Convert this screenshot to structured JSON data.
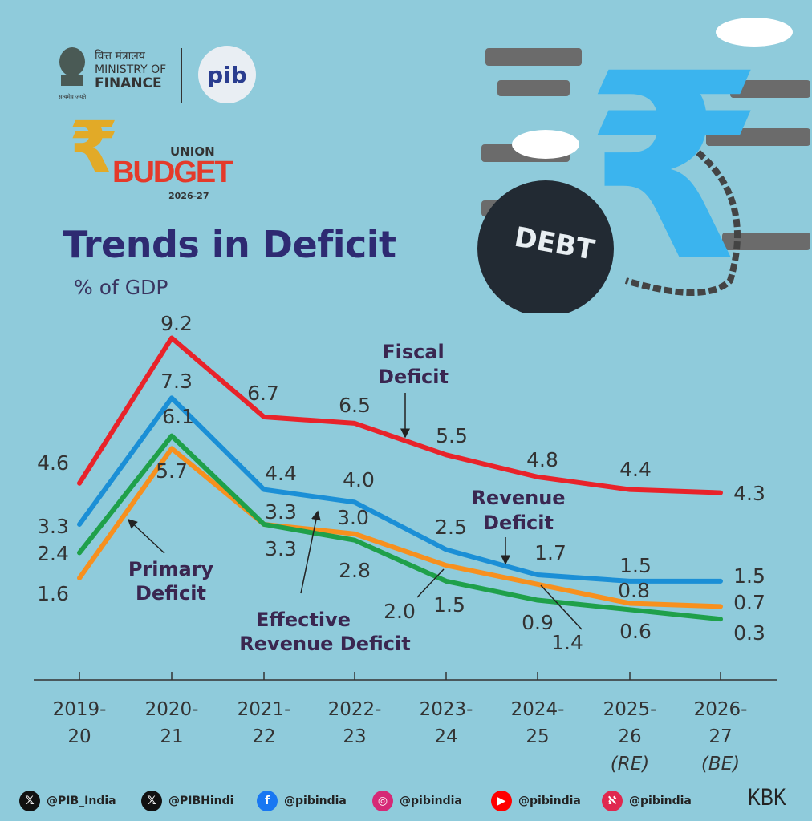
{
  "header": {
    "ministry_hindi": "वित्त मंत्रालय",
    "ministry_line1": "MINISTRY OF",
    "ministry_line2": "FINANCE",
    "emblem_motto": "सत्यमेव जयते",
    "pib_logo": "pib",
    "budget_union": "UNION",
    "budget_word": "BUDGET",
    "budget_year": "2026-27"
  },
  "illustration": {
    "ball_text": "DEBT",
    "rupee_color": "#3bb4ee"
  },
  "chart_data": {
    "type": "line",
    "title": "Trends in Deficit",
    "ylabel": "% of GDP",
    "xlabel": "",
    "categories": [
      [
        "2019-",
        "20",
        ""
      ],
      [
        "2020-",
        "21",
        ""
      ],
      [
        "2021-",
        "22",
        ""
      ],
      [
        "2022-",
        "23",
        ""
      ],
      [
        "2023-",
        "24",
        ""
      ],
      [
        "2024-",
        "25",
        ""
      ],
      [
        "2025-",
        "26",
        "(RE)"
      ],
      [
        "2026-",
        "27",
        "(BE)"
      ]
    ],
    "ylim": [
      0,
      10
    ],
    "grid": false,
    "legend": "inline annotations",
    "series": [
      {
        "name": "Fiscal Deficit",
        "name_lines": [
          "Fiscal",
          "Deficit"
        ],
        "color": "#e8232a",
        "values": [
          4.6,
          9.2,
          6.7,
          6.5,
          5.5,
          4.8,
          4.4,
          4.3
        ]
      },
      {
        "name": "Revenue Deficit",
        "name_lines": [
          "Revenue",
          "Deficit"
        ],
        "color": "#1b8fd6",
        "values": [
          3.3,
          7.3,
          4.4,
          4.0,
          2.5,
          1.7,
          1.5,
          1.5
        ]
      },
      {
        "name": "Primary Deficit",
        "name_lines": [
          "Primary",
          "Deficit"
        ],
        "color": "#f7901e",
        "values": [
          1.6,
          5.7,
          3.3,
          3.0,
          2.0,
          1.4,
          0.8,
          0.7
        ]
      },
      {
        "name": "Effective Revenue Deficit",
        "name_lines": [
          "Effective",
          "Revenue Deficit"
        ],
        "color": "#1fa04a",
        "values": [
          2.4,
          6.1,
          3.3,
          2.8,
          1.5,
          0.9,
          0.6,
          0.3
        ]
      }
    ]
  },
  "footer": {
    "handles": [
      {
        "icon": "x-icon",
        "text": "@PIB_India",
        "color": "#111111"
      },
      {
        "icon": "x-icon",
        "text": "@PIBHindi",
        "color": "#111111"
      },
      {
        "icon": "facebook-icon",
        "text": "@pibindia",
        "color": "#1877f2"
      },
      {
        "icon": "instagram-icon",
        "text": "@pibindia",
        "color": "#d62976"
      },
      {
        "icon": "youtube-icon",
        "text": "@pibindia",
        "color": "#ff0000"
      },
      {
        "icon": "koo-icon",
        "text": "@pibindia",
        "color": "#e0284f"
      }
    ],
    "credit": "KBK"
  }
}
